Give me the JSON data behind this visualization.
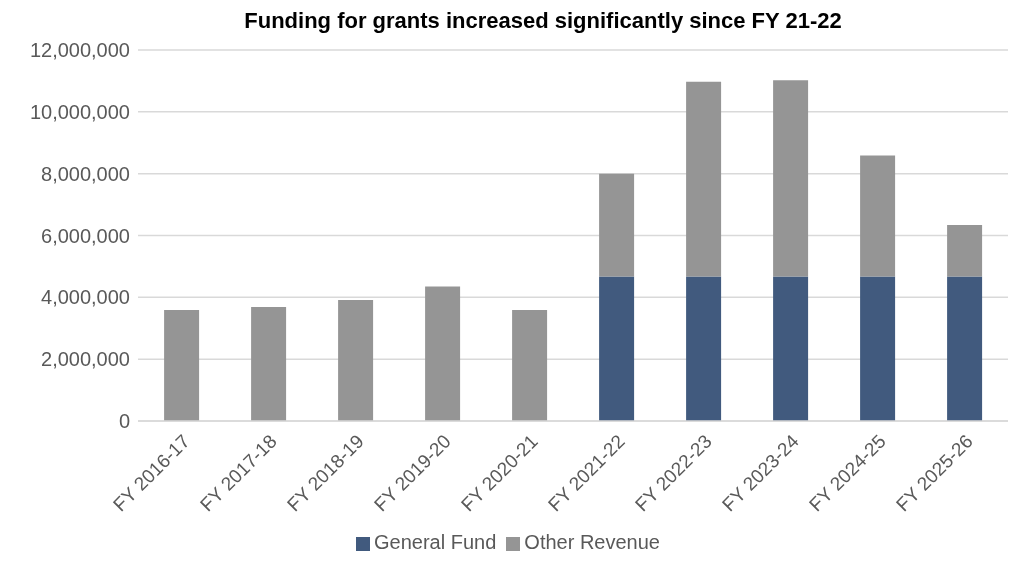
{
  "chart_data": {
    "type": "bar",
    "title": "Funding for grants increased significantly since FY 21-22",
    "categories": [
      "FY 2016-17",
      "FY 2017-18",
      "FY 2018-19",
      "FY 2019-20",
      "FY 2020-21",
      "FY 2021-22",
      "FY 2022-23",
      "FY 2023-24",
      "FY 2024-25",
      "FY 2025-26"
    ],
    "series": [
      {
        "name": "General Fund",
        "color": "#415a7e",
        "values": [
          null,
          null,
          null,
          null,
          null,
          4670000,
          4670000,
          4670000,
          4670000,
          4670000
        ]
      },
      {
        "name": "Other Revenue",
        "color": "#959595",
        "values": [
          3590000,
          3690000,
          3910000,
          4350000,
          3590000,
          3330000,
          6300000,
          6350000,
          3920000,
          1670000
        ]
      }
    ],
    "stacked": true,
    "ylim": [
      0,
      12000000
    ],
    "yticks": [
      0,
      {
        "value": 2000000,
        "label": "2,000,000"
      },
      {
        "value": 4000000,
        "label": "4,000,000"
      },
      {
        "value": 6000000,
        "label": "6,000,000"
      },
      {
        "value": 8000000,
        "label": "8,000,000"
      },
      {
        "value": 10000000,
        "label": "10,000,000"
      },
      {
        "value": 12000000,
        "label": "12,000,000"
      }
    ],
    "grid": "y",
    "legend": "bottom"
  }
}
